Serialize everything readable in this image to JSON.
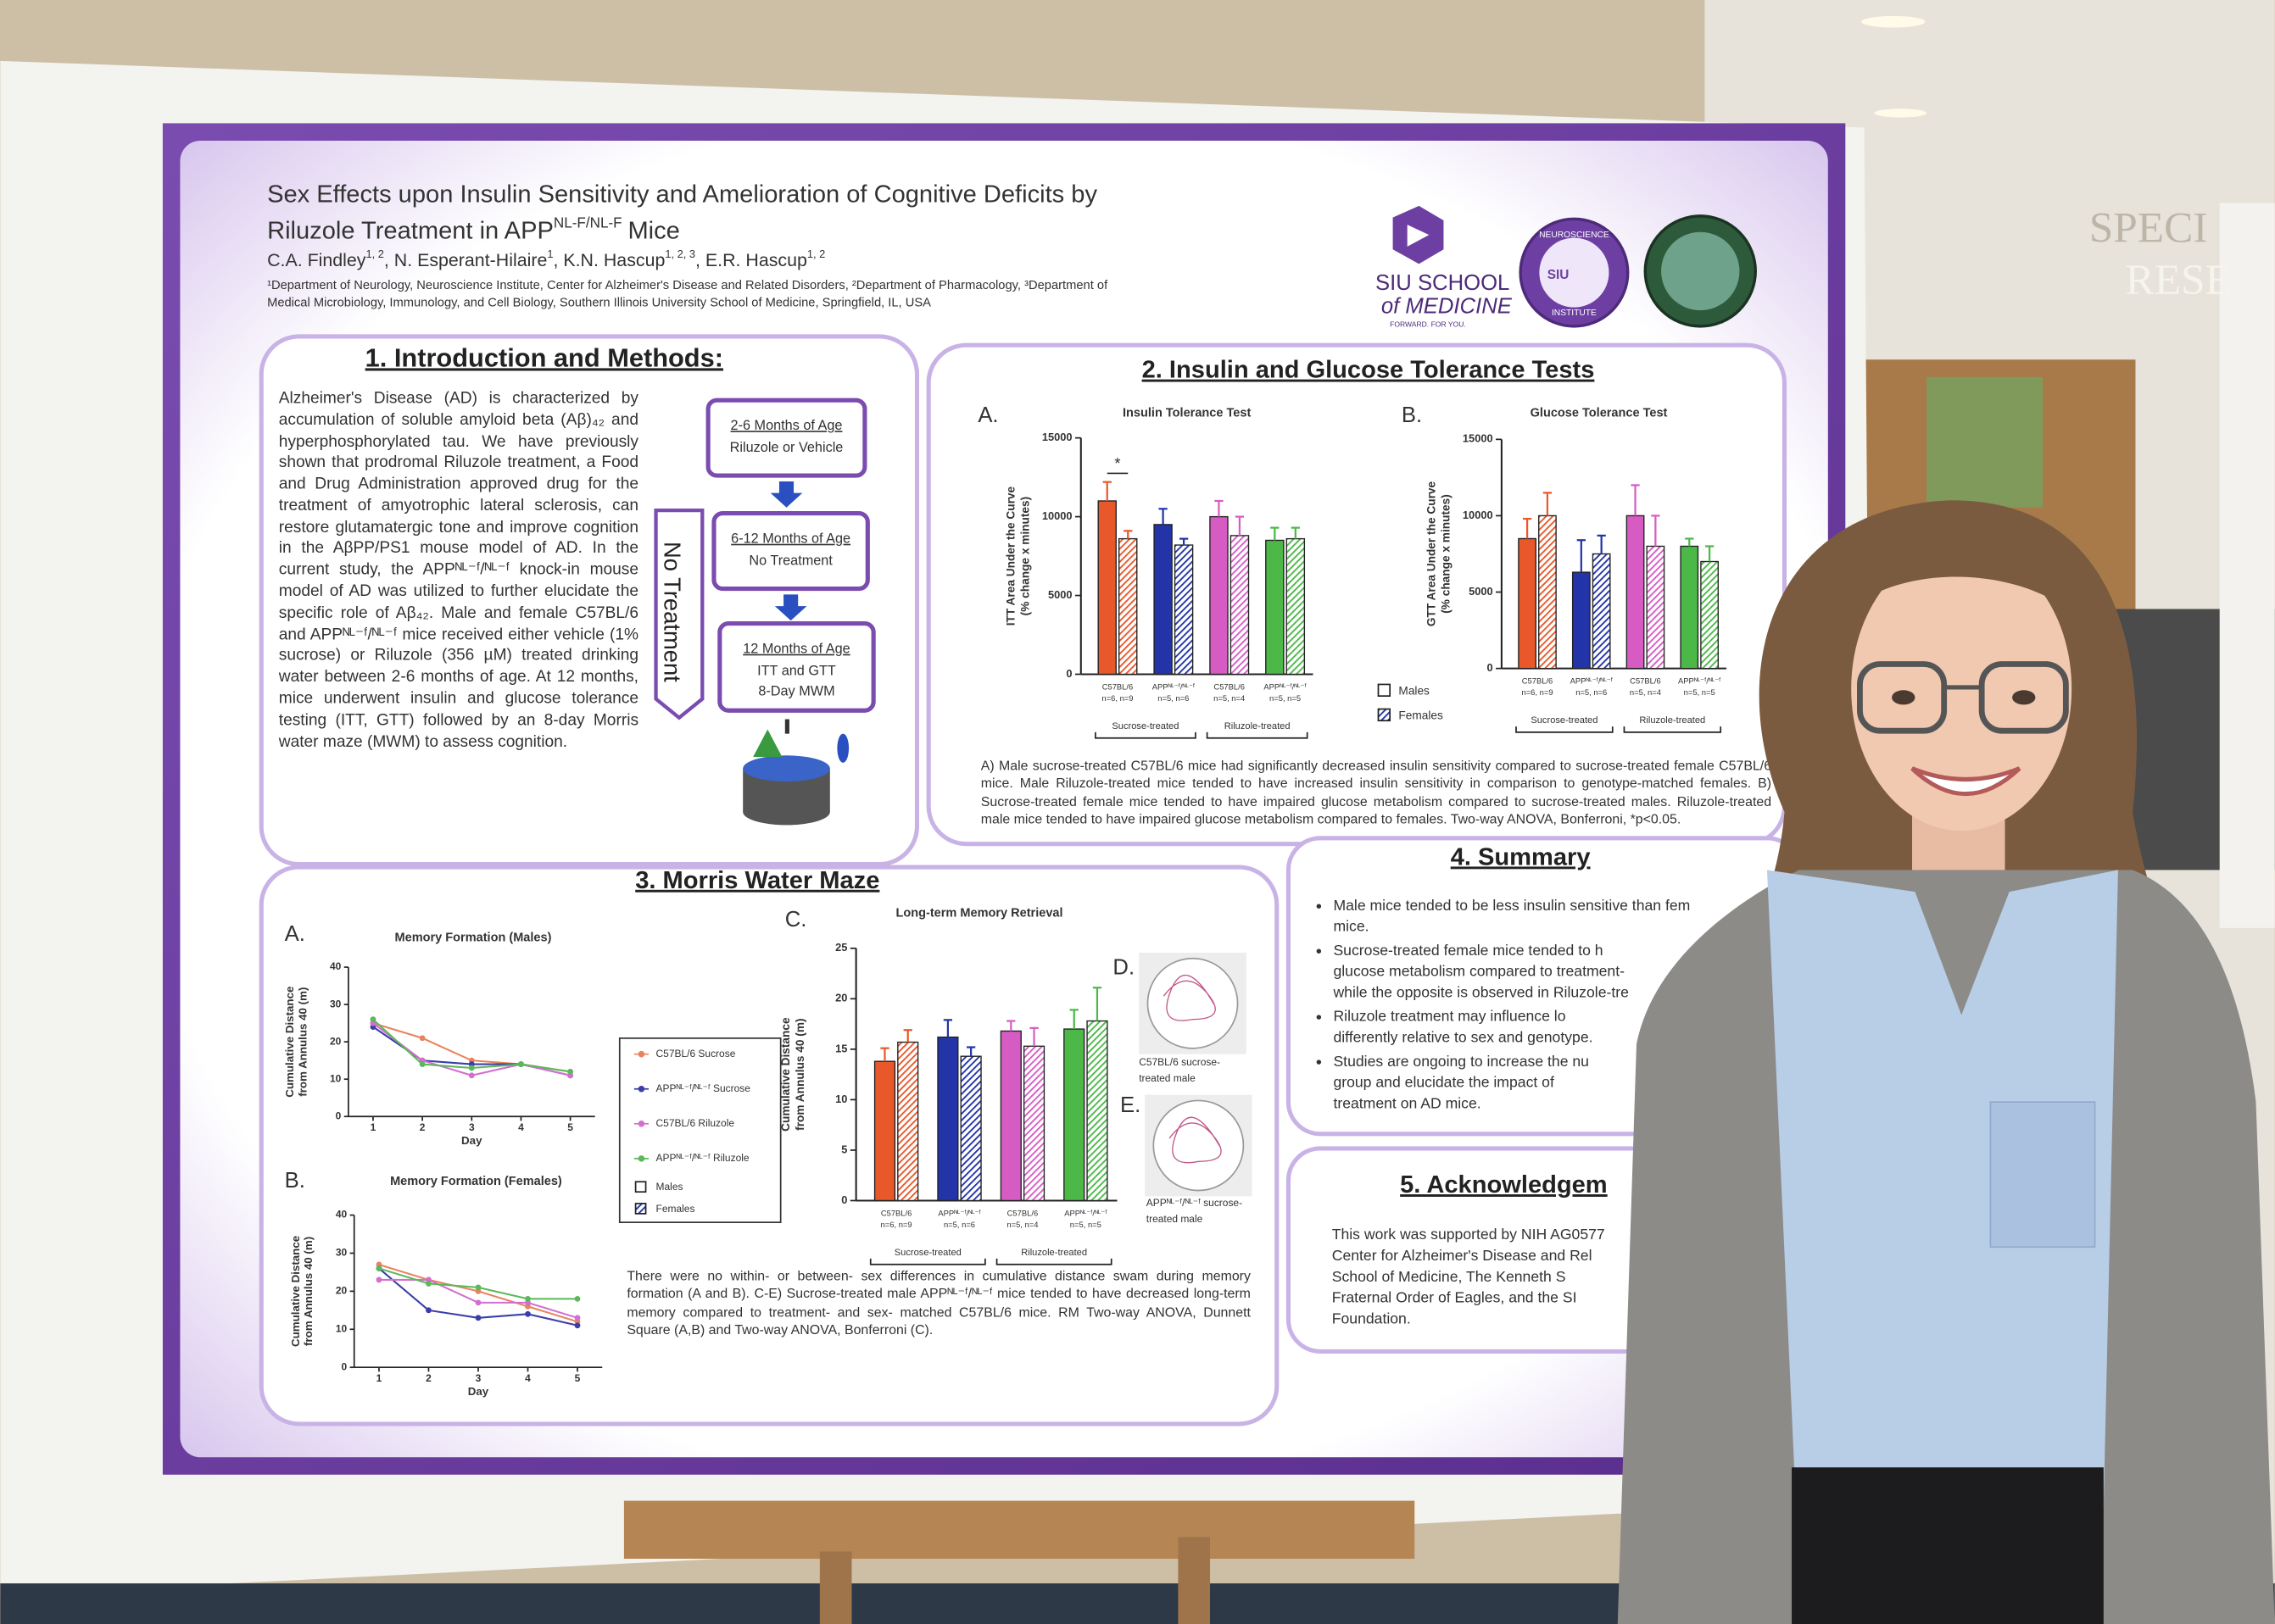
{
  "background": {
    "sign": [
      "SPECI",
      "RESE"
    ]
  },
  "poster": {
    "title": {
      "line1": "Sex Effects upon Insulin Sensitivity and Amelioration of Cognitive Deficits by",
      "line2": "Riluzole Treatment in APP",
      "sup": "NL-F/NL-F",
      "line2_end": "Mice"
    },
    "authors": [
      {
        "name": "C.A. Findley",
        "sup": "1, 2"
      },
      {
        "name": ", N. Esperant-Hilaire",
        "sup": "1"
      },
      {
        "name": ", K.N. Hascup",
        "sup": "1, 2, 3"
      },
      {
        "name": ", E.R. Hascup",
        "sup": "1, 2"
      }
    ],
    "affiliations": [
      "¹Department of Neurology, Neuroscience Institute, Center for Alzheimer's Disease and Related Disorders, ²Department of Pharmacology, ³Department of",
      "Medical Microbiology, Immunology, and Cell Biology, Southern Illinois University School of Medicine, Springfield, IL, USA"
    ],
    "logo": {
      "line1": "SIU SCHOOL",
      "line2": "of MEDICINE",
      "tagline": "FORWARD. FOR YOU.",
      "seal_top": "NEUROSCIENCE",
      "seal_bottom": "INSTITUTE",
      "seal_center": "SIU"
    },
    "intro": {
      "heading": "1. Introduction and Methods:",
      "text": "Alzheimer's Disease (AD) is characterized by accumulation of soluble amyloid beta (Aβ)₄₂ and hyperphosphorylated tau. We have previously shown that prodromal Riluzole treatment, a Food and Drug Administration approved drug for the treatment of amyotrophic lateral sclerosis, can restore glutamatergic tone and improve cognition in the AβPP/PS1 mouse model of AD. In the current study, the APPᴺᴸ⁻ᶠ/ᴺᴸ⁻ᶠ knock-in mouse model of AD was utilized to further elucidate the specific role of Aβ₄₂. Male and female C57BL/6 and APPᴺᴸ⁻ᶠ/ᴺᴸ⁻ᶠ mice received either vehicle (1% sucrose) or Riluzole (356 µM) treated drinking water between 2-6 months of age. At 12 months, mice underwent insulin and glucose tolerance testing (ITT, GTT) followed by an 8-day Morris water maze (MWM) to assess cognition.",
      "timeline": [
        {
          "title": "2-6 Months of Age",
          "lines": [
            "Riluzole or Vehicle"
          ]
        },
        {
          "title": "6-12 Months of Age",
          "lines": [
            "No Treatment"
          ]
        },
        {
          "title": "12 Months of Age",
          "lines": [
            "ITT and GTT",
            "8-Day MWM"
          ]
        }
      ],
      "side_label": "No Treatment"
    },
    "tolerance": {
      "heading": "2. Insulin and Glucose Tolerance Tests",
      "legend": [
        "Males",
        "Females"
      ],
      "charts": [
        {
          "type": "bar",
          "panel": "A.",
          "title": "Insulin Tolerance Test",
          "ylabel": [
            "ITT Area Under the Curve",
            "(% change x minutes)"
          ],
          "ylim": [
            0,
            15000
          ],
          "yticks": [
            0,
            5000,
            10000,
            15000
          ],
          "categories": [
            [
              "C57BL/6",
              "n=6, n=9"
            ],
            [
              "APPᴺᴸ⁻ᶠ/ᴺᴸ⁻ᶠ",
              "n=5, n=6"
            ],
            [
              "C57BL/6",
              "n=5, n=4"
            ],
            [
              "APPᴺᴸ⁻ᶠ/ᴺᴸ⁻ᶠ",
              "n=5, n=5"
            ]
          ],
          "groups": [
            "Sucrose-treated",
            "Riluzole-treated"
          ],
          "colors": [
            "#e8582a",
            "#2334a8",
            "#d65cc4",
            "#4cb848"
          ],
          "series": [
            {
              "values": [
                11000,
                9500,
                10000,
                8500
              ],
              "errors": [
                1200,
                1000,
                1000,
                800
              ]
            },
            {
              "values": [
                8600,
                8200,
                8800,
                8600
              ],
              "errors": [
                500,
                400,
                1200,
                700
              ],
              "hatched": true
            }
          ],
          "annotation": "*"
        },
        {
          "type": "bar",
          "panel": "B.",
          "title": "Glucose Tolerance Test",
          "ylabel": [
            "GTT Area Under the Curve",
            "(% change x minutes)"
          ],
          "ylim": [
            0,
            15000
          ],
          "yticks": [
            0,
            5000,
            10000,
            15000
          ],
          "categories": [
            [
              "C57BL/6",
              "n=6, n=9"
            ],
            [
              "APPᴺᴸ⁻ᶠ/ᴺᴸ⁻ᶠ",
              "n=5, n=6"
            ],
            [
              "C57BL/6",
              "n=5, n=4"
            ],
            [
              "APPᴺᴸ⁻ᶠ/ᴺᴸ⁻ᶠ",
              "n=5, n=5"
            ]
          ],
          "groups": [
            "Sucrose-treated",
            "Riluzole-treated"
          ],
          "colors": [
            "#e8582a",
            "#2334a8",
            "#d65cc4",
            "#4cb848"
          ],
          "series": [
            {
              "values": [
                8500,
                6300,
                10000,
                8000
              ],
              "errors": [
                1300,
                2100,
                2000,
                500
              ]
            },
            {
              "values": [
                10000,
                7500,
                8000,
                7000
              ],
              "errors": [
                1500,
                1200,
                2000,
                1000
              ],
              "hatched": true
            }
          ]
        }
      ],
      "caption": "A) Male sucrose-treated C57BL/6 mice had significantly decreased insulin sensitivity compared to sucrose-treated female C57BL/6 mice. Male Riluzole-treated mice tended to have increased insulin sensitivity in comparison to genotype-matched females. B) Sucrose-treated female mice tended to have impaired glucose metabolism compared to sucrose-treated males. Riluzole-treated male mice tended to have impaired glucose metabolism compared to females. Two-way ANOVA, Bonferroni, *p<0.05."
    },
    "mwm": {
      "heading": "3. Morris Water Maze",
      "legend_series": [
        {
          "name": "C57BL/6 Sucrose",
          "color": "#e8835f"
        },
        {
          "name": "APPᴺᴸ⁻ᶠ/ᴺᴸ⁻ᶠ Sucrose",
          "color": "#3a3ea8"
        },
        {
          "name": "C57BL/6 Riluzole",
          "color": "#d36fd0"
        },
        {
          "name": "APPᴺᴸ⁻ᶠ/ᴺᴸ⁻ᶠ Riluzole",
          "color": "#5bb85b"
        }
      ],
      "legend": [
        "Males",
        "Females"
      ],
      "line_charts": [
        {
          "type": "line",
          "panel": "A.",
          "title": "Memory Formation (Males)",
          "ylabel": [
            "Cumulative Distance",
            "from Annulus 40 (m)"
          ],
          "xlabel": "Day",
          "x": [
            1,
            2,
            3,
            4,
            5
          ],
          "xlim": [
            0.5,
            5.5
          ],
          "xticks": [
            1,
            2,
            3,
            4,
            5
          ],
          "ylim": [
            0,
            40
          ],
          "yticks": [
            0,
            10,
            20,
            30,
            40
          ],
          "series": [
            {
              "values": [
                25,
                21,
                15,
                14,
                12
              ]
            },
            {
              "values": [
                24,
                15,
                14,
                14,
                11
              ]
            },
            {
              "values": [
                25,
                15,
                11,
                14,
                11
              ]
            },
            {
              "values": [
                26,
                14,
                13,
                14,
                12
              ]
            }
          ]
        },
        {
          "type": "line",
          "panel": "B.",
          "title": "Memory Formation (Females)",
          "ylabel": [
            "Cumulative Distance",
            "from Annulus 40 (m)"
          ],
          "xlabel": "Day",
          "x": [
            1,
            2,
            3,
            4,
            5
          ],
          "xlim": [
            0.5,
            5.5
          ],
          "xticks": [
            1,
            2,
            3,
            4,
            5
          ],
          "ylim": [
            0,
            40
          ],
          "yticks": [
            0,
            10,
            20,
            30,
            40
          ],
          "series": [
            {
              "values": [
                27,
                23,
                20,
                16,
                12
              ]
            },
            {
              "values": [
                26,
                15,
                13,
                14,
                11
              ]
            },
            {
              "values": [
                23,
                23,
                17,
                17,
                13
              ]
            },
            {
              "values": [
                26,
                22,
                21,
                18,
                18
              ]
            }
          ]
        }
      ],
      "bar_chart": {
        "type": "bar",
        "panel": "C.",
        "title": "Long-term Memory Retrieval",
        "ylabel": [
          "Cumulative Distance",
          "from Annulus 40 (m)"
        ],
        "ylim": [
          0,
          25
        ],
        "yticks": [
          0,
          5,
          10,
          15,
          20,
          25
        ],
        "categories": [
          [
            "C57BL/6",
            "n=6, n=9"
          ],
          [
            "APPᴺᴸ⁻ᶠ/ᴺᴸ⁻ᶠ",
            "n=5, n=6"
          ],
          [
            "C57BL/6",
            "n=5, n=4"
          ],
          [
            "APPᴺᴸ⁻ᶠ/ᴺᴸ⁻ᶠ",
            "n=5, n=5"
          ]
        ],
        "groups": [
          "Sucrose-treated",
          "Riluzole-treated"
        ],
        "colors": [
          "#e8582a",
          "#2334a8",
          "#d65cc4",
          "#4cb848"
        ],
        "series": [
          {
            "values": [
              13.8,
              16.2,
              16.8,
              17
            ],
            "errors": [
              1.3,
              1.7,
              1.0,
              1.9
            ]
          },
          {
            "values": [
              15.7,
              14.3,
              15.3,
              17.8
            ],
            "errors": [
              1.2,
              0.9,
              1.8,
              3.3
            ],
            "hatched": true
          }
        ]
      },
      "images": [
        {
          "panel": "D.",
          "caption": [
            "C57BL/6 sucrose-",
            "treated male"
          ]
        },
        {
          "panel": "E.",
          "caption": [
            "APPᴺᴸ⁻ᶠ/ᴺᴸ⁻ᶠ sucrose-",
            "treated male"
          ]
        }
      ],
      "caption": "There were no within- or between- sex differences in cumulative distance swam during memory formation (A and B). C-E) Sucrose-treated male APPᴺᴸ⁻ᶠ/ᴺᴸ⁻ᶠ mice tended to have decreased long-term memory compared to treatment- and sex- matched C57BL/6 mice. RM Two-way ANOVA, Dunnett Square (A,B) and Two-way ANOVA, Bonferroni (C)."
    },
    "summary": {
      "heading": "4. Summary",
      "bullets": [
        [
          "Male mice tended to be less insulin sensitive than fem",
          "mice."
        ],
        [
          "Sucrose-treated female mice tended to h",
          "glucose metabolism compared to treatment-",
          "while the opposite is observed in Riluzole-tre"
        ],
        [
          "Riluzole treatment may influence lo",
          "differently relative to sex and genotype."
        ],
        [
          "Studies are ongoing to increase the nu",
          "group and elucidate the impact of",
          "treatment on AD mice."
        ]
      ]
    },
    "acknowledgements": {
      "heading": "5. Acknowledgem",
      "lines": [
        "This work was supported by NIH AG0577",
        "Center for Alzheimer's Disease and Rel",
        "School of Medicine, The Kenneth S",
        "Fraternal Order of Eagles, and the SI",
        "Foundation."
      ]
    }
  }
}
